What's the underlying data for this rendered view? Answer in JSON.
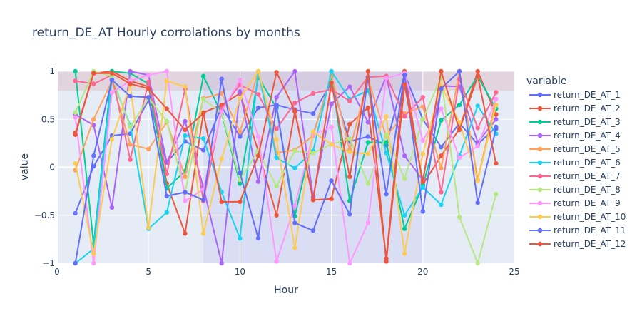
{
  "chart_data": {
    "type": "line",
    "title": "return_DE_AT Hourly corrolations by months",
    "xlabel": "Hour",
    "ylabel": "value",
    "xlim": [
      0,
      25
    ],
    "ylim": [
      -1,
      1
    ],
    "x_ticks": [
      0,
      5,
      10,
      15,
      20,
      25
    ],
    "x_tick_labels": [
      "0",
      "5",
      "10",
      "15",
      "20",
      "25"
    ],
    "y_ticks": [
      -1,
      -0.5,
      0,
      0.5,
      1
    ],
    "y_tick_labels": [
      "−1",
      "−0.5",
      "0",
      "0.5",
      "1"
    ],
    "grid": true,
    "legend_title": "variable",
    "legend_position": "right",
    "mode": "lines+markers",
    "shapes": [
      {
        "type": "hrect",
        "y0": 0.8,
        "y1": 1.0,
        "color": "#d98b96",
        "opacity": 0.25
      },
      {
        "type": "vrect",
        "x0": 8,
        "x1": 20,
        "color": "#b8b3f0",
        "opacity": 0.25
      }
    ],
    "x": [
      1,
      2,
      3,
      4,
      5,
      6,
      7,
      8,
      9,
      10,
      11,
      12,
      13,
      14,
      15,
      16,
      17,
      18,
      19,
      20,
      21,
      22,
      23,
      24
    ],
    "series": [
      {
        "name": "return_DE_AT_1",
        "color": "#636efa",
        "values": [
          -0.48,
          0.01,
          0.33,
          0.35,
          0.7,
          0.05,
          0.27,
          0.18,
          0.63,
          0.32,
          0.62,
          0.65,
          0.6,
          0.56,
          0.88,
          0.27,
          0.32,
          0.23,
          0.97,
          0.5,
          0.21,
          0.46,
          0.24,
          0.42
        ]
      },
      {
        "name": "return_DE_AT_2",
        "color": "#ef553b",
        "values": [
          0.36,
          0.98,
          1.0,
          0.9,
          0.84,
          -0.17,
          -0.69,
          0.57,
          0.65,
          0.77,
          0.17,
          -0.5,
          0.58,
          -0.34,
          -0.33,
          0.45,
          0.62,
          -0.95,
          1.0,
          -0.18,
          0.12,
          0.4,
          1.0,
          0.55
        ]
      },
      {
        "name": "return_DE_AT_3",
        "color": "#00cc96",
        "values": [
          1.0,
          -0.8,
          1.0,
          0.98,
          0.87,
          -0.22,
          -0.04,
          0.95,
          0.56,
          -0.17,
          0.94,
          0.62,
          -0.51,
          0.34,
          0.95,
          -0.35,
          0.26,
          0.26,
          -0.64,
          -0.19,
          0.49,
          0.65,
          0.95,
          0.61
        ]
      },
      {
        "name": "return_DE_AT_4",
        "color": "#ab63fa",
        "values": [
          0.55,
          0.44,
          -0.42,
          1.0,
          0.96,
          0.05,
          0.48,
          -0.21,
          -1.0,
          0.79,
          -0.15,
          0.73,
          1.0,
          -0.31,
          0.66,
          0.84,
          0.47,
          0.95,
          0.12,
          -0.13,
          0.85,
          0.84,
          0.26,
          0.5
        ]
      },
      {
        "name": "return_DE_AT_5",
        "color": "#ffa15a",
        "values": [
          -0.03,
          0.5,
          0.9,
          0.24,
          0.19,
          0.47,
          -0.1,
          0.72,
          0.77,
          0.37,
          0.99,
          0.15,
          0.18,
          0.33,
          0.96,
          0.18,
          0.92,
          0.32,
          0.56,
          0.63,
          -0.01,
          1.0,
          -0.13,
          0.71
        ]
      },
      {
        "name": "return_DE_AT_6",
        "color": "#19d3f3",
        "values": [
          -1.0,
          -0.85,
          0.92,
          0.44,
          -0.64,
          -0.47,
          0.33,
          0.3,
          -0.26,
          -0.74,
          1.0,
          0.1,
          -0.01,
          0.17,
          1.0,
          0.71,
          0.8,
          0.15,
          -0.5,
          -0.21,
          -0.39,
          0.12,
          0.64,
          0.35
        ]
      },
      {
        "name": "return_DE_AT_7",
        "color": "#ff6692",
        "values": [
          0.9,
          0.87,
          0.96,
          0.08,
          0.89,
          -0.07,
          0.82,
          -0.35,
          0.61,
          0.86,
          0.76,
          0.4,
          0.67,
          0.77,
          0.81,
          0.69,
          0.94,
          0.95,
          0.53,
          0.73,
          -0.26,
          0.92,
          0.41,
          0.78
        ]
      },
      {
        "name": "return_DE_AT_8",
        "color": "#b6e880",
        "values": [
          0.57,
          1.0,
          0.95,
          0.42,
          0.72,
          0.48,
          -0.27,
          0.71,
          0.57,
          -0.13,
          0.17,
          -0.2,
          0.17,
          0.15,
          0.24,
          0.3,
          -0.17,
          0.34,
          -0.12,
          0.5,
          0.94,
          -0.52,
          -1.0,
          -0.28
        ]
      },
      {
        "name": "return_DE_AT_9",
        "color": "#ff97ff",
        "values": [
          0.52,
          -1.0,
          0.78,
          0.9,
          0.96,
          1.0,
          -0.35,
          -0.23,
          0.58,
          0.91,
          0.32,
          -0.98,
          -0.4,
          0.34,
          0.42,
          -1.0,
          -0.58,
          0.93,
          0.98,
          0.28,
          0.61,
          0.1,
          0.22,
          0.71
        ]
      },
      {
        "name": "return_DE_AT_10",
        "color": "#fecb52",
        "values": [
          0.04,
          -0.9,
          0.29,
          0.86,
          -0.63,
          0.9,
          0.84,
          -0.69,
          0.09,
          0.72,
          1.0,
          0.29,
          -0.84,
          0.37,
          0.24,
          0.16,
          0.14,
          0.53,
          -0.9,
          0.14,
          0.85,
          0.47,
          -0.14,
          0.65
        ]
      },
      {
        "name": "return_DE_AT_11",
        "color": "#636efa",
        "values": [
          -1.0,
          0.12,
          0.91,
          0.74,
          0.73,
          -0.3,
          -0.26,
          -0.34,
          0.92,
          -0.06,
          -0.74,
          0.64,
          -0.58,
          -0.66,
          -0.14,
          -0.49,
          0.94,
          -0.28,
          0.96,
          -0.46,
          0.82,
          1.0,
          -0.37,
          0.4
        ]
      },
      {
        "name": "return_DE_AT_12",
        "color": "#ef553b",
        "values": [
          0.34,
          0.98,
          0.98,
          0.87,
          0.82,
          0.61,
          0.39,
          0.56,
          -0.36,
          -0.36,
          0.12,
          0.99,
          0.59,
          -0.34,
          0.88,
          -0.1,
          1.0,
          -0.98,
          0.86,
          -0.15,
          1.0,
          0.39,
          0.95,
          0.04
        ]
      }
    ]
  }
}
